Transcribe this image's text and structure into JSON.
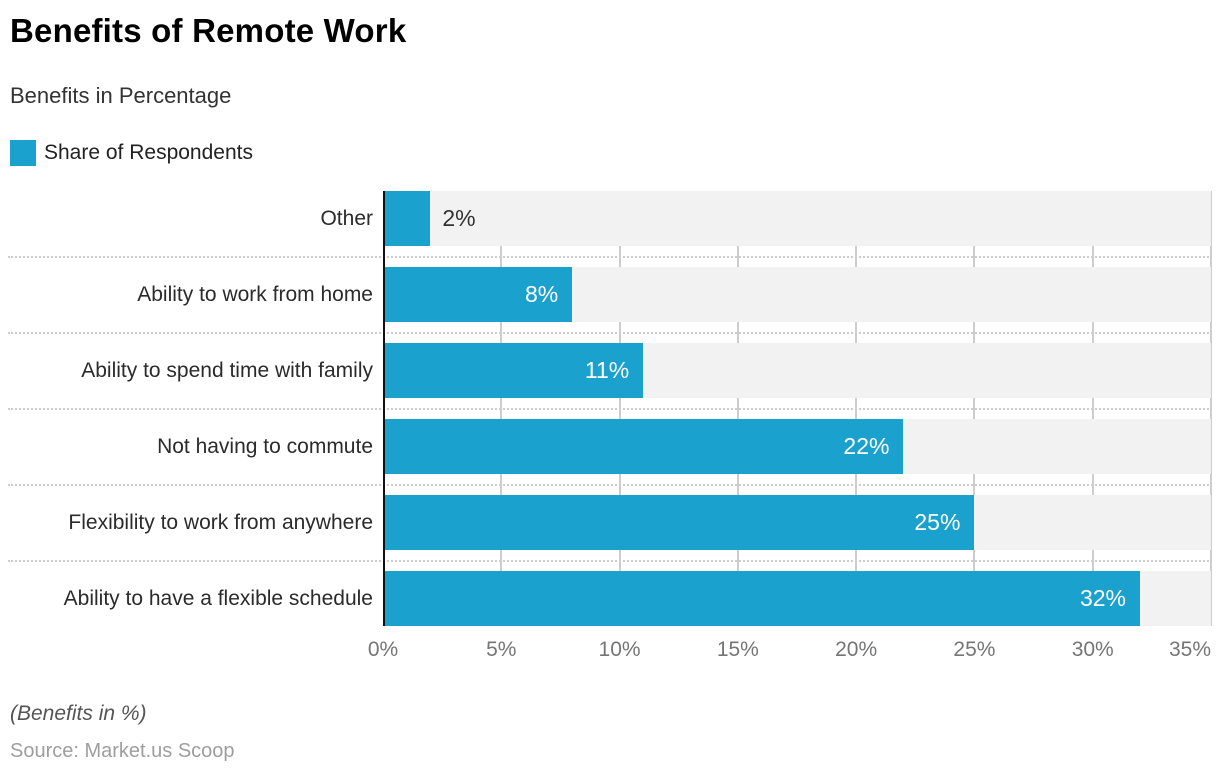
{
  "title": "Benefits of Remote Work",
  "subtitle": "Benefits in Percentage",
  "legend": {
    "label": "Share of Respondents",
    "swatch_color": "#1BA1CE"
  },
  "footer": {
    "note": "(Benefits in %)",
    "source": "Source: Market.us Scoop"
  },
  "colors": {
    "bar": "#1BA1CE",
    "track": "#F2F2F2",
    "gridline": "#CDCDCD",
    "axis": "#111111",
    "value_label_inside": "#FFFFFF",
    "value_label_outside": "#333333"
  },
  "chart_data": {
    "type": "bar",
    "orientation": "horizontal",
    "title": "Benefits of Remote Work",
    "subtitle": "Benefits in Percentage",
    "series_name": "Share of Respondents",
    "categories": [
      "Other",
      "Ability to work from home",
      "Ability to spend time with family",
      "Not having to commute",
      "Flexibility to work from anywhere",
      "Ability to have a flexible schedule"
    ],
    "values": [
      2,
      8,
      11,
      22,
      25,
      32
    ],
    "value_labels": [
      "2%",
      "8%",
      "11%",
      "22%",
      "25%",
      "32%"
    ],
    "label_inside": [
      false,
      true,
      true,
      true,
      true,
      true
    ],
    "xlabel": "",
    "ylabel": "",
    "xlim": [
      0,
      35
    ],
    "x_tick_values": [
      0,
      5,
      10,
      15,
      20,
      25,
      30,
      35
    ],
    "x_tick_labels": [
      "0%",
      "5%",
      "10%",
      "15%",
      "20%",
      "25%",
      "30%",
      "35%"
    ],
    "grid": true,
    "legend_position": "top-left"
  }
}
